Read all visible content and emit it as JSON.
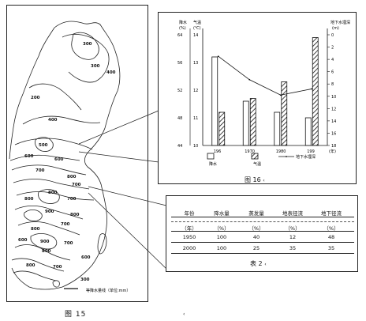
{
  "map": {
    "caption": "图 15",
    "contour_labels": [
      "300",
      "300",
      "400",
      "200",
      "400",
      "500",
      "600",
      "600",
      "700",
      "800",
      "700",
      "800",
      "800",
      "900",
      "800",
      "700",
      "800",
      "600",
      "700",
      "800",
      "600",
      "700",
      "800",
      "900",
      "700"
    ],
    "legend_value": "300",
    "legend_text": "等降水量线（单位:mm）"
  },
  "chart": {
    "caption": "图 16",
    "caption_mark": "‹",
    "left_axis_title_a": "降水",
    "left_axis_unit_a": "(%)",
    "left_axis_title_b": "气温",
    "left_axis_unit_b": "(℃)",
    "right_axis_title": "地下水埋深",
    "right_axis_unit": "(m)",
    "x_unit": "(年)",
    "legend_precip": "降水",
    "legend_temp": "气温",
    "legend_ground": "地下水埋深"
  },
  "chart_data": {
    "type": "bar",
    "categories": [
      "196",
      "1970",
      "1980",
      "199"
    ],
    "precip_ticks": [
      "64",
      "56",
      "52",
      "48",
      "44"
    ],
    "temp_ticks": [
      "14",
      "13",
      "12",
      "11",
      "10"
    ],
    "right_ticks": [
      "0",
      "2",
      "4",
      "6",
      "8",
      "10",
      "12",
      "14",
      "16",
      "18"
    ],
    "series": [
      {
        "name": "降水",
        "axis": "precip",
        "values": [
          60,
          52,
          50,
          49
        ],
        "scale": [
          44,
          64
        ]
      },
      {
        "name": "气温",
        "axis": "temp",
        "values": [
          11.2,
          11.7,
          12.3,
          13.9
        ],
        "scale": [
          10,
          14
        ]
      },
      {
        "name": "地下水埋深",
        "axis": "right",
        "values": [
          3.5,
          7.3,
          9.8,
          8.8
        ],
        "scale": [
          0,
          18
        ]
      }
    ]
  },
  "table": {
    "caption": "表 2",
    "caption_mark": "‹",
    "headers": [
      "年份",
      "降水量",
      "蒸发量",
      "地表径流",
      "地下径流"
    ],
    "units": [
      "（年）",
      "（%）",
      "（%）",
      "（%）",
      "（%）"
    ],
    "rows": [
      [
        "1950",
        "100",
        "40",
        "12",
        "48"
      ],
      [
        "2000",
        "100",
        "25",
        "35",
        "35"
      ]
    ]
  },
  "page": {
    "bottom_mark": "‹"
  }
}
